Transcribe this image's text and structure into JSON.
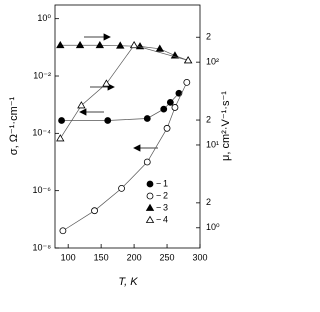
{
  "chart_data": {
    "type": "scatter",
    "x_label": "T, K",
    "y_label": "σ, Ω⁻¹·cm⁻¹",
    "y2_label": "μ, cm²·V⁻¹·s⁻¹",
    "xlim": [
      80,
      300
    ],
    "xticks": [
      100,
      150,
      200,
      250,
      300
    ],
    "ylim": [
      1e-08,
      3
    ],
    "y_log": true,
    "yticks": [
      {
        "value": 1e-08,
        "label": "10⁻⁸"
      },
      {
        "value": 1e-06,
        "label": "10⁻⁶"
      },
      {
        "value": 0.0001,
        "label": "10⁻⁴"
      },
      {
        "value": 0.01,
        "label": "10⁻²"
      },
      {
        "value": 1,
        "label": "10⁰"
      }
    ],
    "y2lim": [
      0.57,
      490
    ],
    "y2_log": true,
    "y2ticks": [
      {
        "value": 1,
        "label": "10⁰"
      },
      {
        "value": 2,
        "label": "2"
      },
      {
        "value": 10,
        "label": "10¹"
      },
      {
        "value": 20,
        "label": "2"
      },
      {
        "value": 100,
        "label": "10²"
      },
      {
        "value": 200,
        "label": "2"
      }
    ],
    "series": [
      {
        "name": "1",
        "color": "#000",
        "marker": "circle",
        "filled": true,
        "x": [
          90,
          160,
          220,
          245,
          255,
          268
        ],
        "values": [
          0.00028,
          0.00028,
          0.00033,
          0.0007,
          0.0012,
          0.0025
        ]
      },
      {
        "name": "2",
        "color": "#000",
        "marker": "circle",
        "filled": false,
        "x": [
          92,
          140,
          181,
          220,
          250,
          262,
          280
        ],
        "values": [
          4e-08,
          2e-07,
          1.2e-06,
          1e-05,
          0.00015,
          0.0008,
          0.006
        ]
      },
      {
        "name": "3",
        "color": "#000",
        "marker": "triangle",
        "filled": true,
        "axis": "y2",
        "x": [
          88,
          118,
          148,
          179,
          209,
          239,
          262,
          282
        ],
        "values": [
          160,
          160,
          160,
          158,
          155,
          145,
          120,
          105
        ]
      },
      {
        "name": "4",
        "color": "#000",
        "marker": "triangle",
        "filled": false,
        "axis": "y2",
        "x": [
          88,
          120,
          158,
          200,
          282
        ],
        "values": [
          12,
          30,
          55,
          160,
          105
        ]
      }
    ]
  }
}
